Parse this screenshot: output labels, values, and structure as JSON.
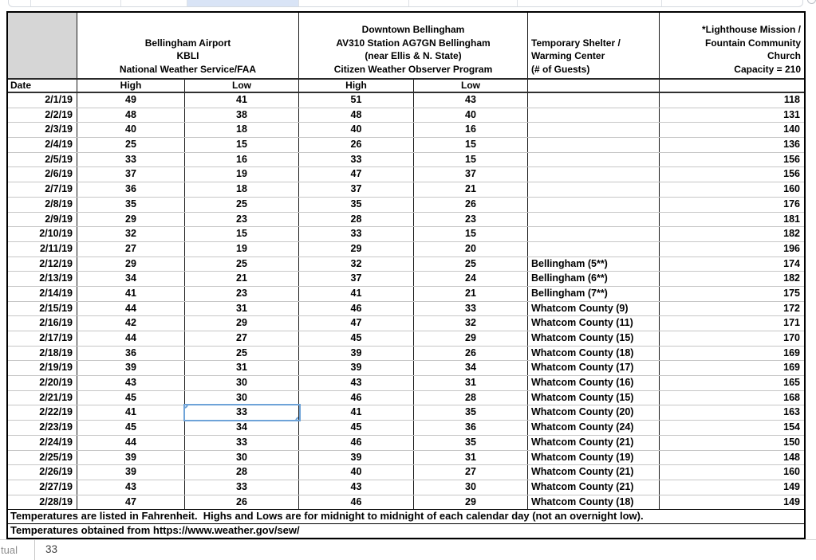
{
  "table": {
    "corner_label": "",
    "date_header": "Date",
    "groups": [
      {
        "id": "kbli",
        "title_lines": [
          "Bellingham Airport",
          "KBLI",
          "National Weather Service/FAA"
        ],
        "subheaders": [
          "High",
          "Low"
        ]
      },
      {
        "id": "downtown",
        "title_lines": [
          "Downtown Bellingham",
          "AV310 Station AG7GN Bellingham",
          "(near Ellis & N. State)",
          "Citizen Weather Observer Program"
        ],
        "subheaders": [
          "High",
          "Low"
        ]
      },
      {
        "id": "shelter",
        "title_lines": [
          "Temporary Shelter /",
          "Warming Center",
          "(# of Guests)"
        ],
        "subheaders": [
          ""
        ]
      },
      {
        "id": "mission",
        "title_lines": [
          "*Lighthouse Mission /",
          "Fountain Community",
          "Church",
          "Capacity = 210"
        ],
        "subheaders": [
          ""
        ]
      }
    ],
    "rows": [
      {
        "date": "2/1/19",
        "kbli_high": "49",
        "kbli_low": "41",
        "dt_high": "51",
        "dt_low": "43",
        "shelter": "",
        "mission": "118"
      },
      {
        "date": "2/2/19",
        "kbli_high": "48",
        "kbli_low": "38",
        "dt_high": "48",
        "dt_low": "40",
        "shelter": "",
        "mission": "131"
      },
      {
        "date": "2/3/19",
        "kbli_high": "40",
        "kbli_low": "18",
        "dt_high": "40",
        "dt_low": "16",
        "shelter": "",
        "mission": "140"
      },
      {
        "date": "2/4/19",
        "kbli_high": "25",
        "kbli_low": "15",
        "dt_high": "26",
        "dt_low": "15",
        "shelter": "",
        "mission": "136"
      },
      {
        "date": "2/5/19",
        "kbli_high": "33",
        "kbli_low": "16",
        "dt_high": "33",
        "dt_low": "15",
        "shelter": "",
        "mission": "156"
      },
      {
        "date": "2/6/19",
        "kbli_high": "37",
        "kbli_low": "19",
        "dt_high": "47",
        "dt_low": "37",
        "shelter": "",
        "mission": "156"
      },
      {
        "date": "2/7/19",
        "kbli_high": "36",
        "kbli_low": "18",
        "dt_high": "37",
        "dt_low": "21",
        "shelter": "",
        "mission": "160"
      },
      {
        "date": "2/8/19",
        "kbli_high": "35",
        "kbli_low": "25",
        "dt_high": "35",
        "dt_low": "26",
        "shelter": "",
        "mission": "176"
      },
      {
        "date": "2/9/19",
        "kbli_high": "29",
        "kbli_low": "23",
        "dt_high": "28",
        "dt_low": "23",
        "shelter": "",
        "mission": "181"
      },
      {
        "date": "2/10/19",
        "kbli_high": "32",
        "kbli_low": "15",
        "dt_high": "33",
        "dt_low": "15",
        "shelter": "",
        "mission": "182"
      },
      {
        "date": "2/11/19",
        "kbli_high": "27",
        "kbli_low": "19",
        "dt_high": "29",
        "dt_low": "20",
        "shelter": "",
        "mission": "196"
      },
      {
        "date": "2/12/19",
        "kbli_high": "29",
        "kbli_low": "25",
        "dt_high": "32",
        "dt_low": "25",
        "shelter": "Bellingham (5**)",
        "mission": "174"
      },
      {
        "date": "2/13/19",
        "kbli_high": "34",
        "kbli_low": "21",
        "dt_high": "37",
        "dt_low": "24",
        "shelter": "Bellingham (6**)",
        "mission": "182"
      },
      {
        "date": "2/14/19",
        "kbli_high": "41",
        "kbli_low": "23",
        "dt_high": "41",
        "dt_low": "21",
        "shelter": "Bellingham (7**)",
        "mission": "175"
      },
      {
        "date": "2/15/19",
        "kbli_high": "44",
        "kbli_low": "31",
        "dt_high": "46",
        "dt_low": "33",
        "shelter": "Whatcom County (9)",
        "mission": "172"
      },
      {
        "date": "2/16/19",
        "kbli_high": "42",
        "kbli_low": "29",
        "dt_high": "47",
        "dt_low": "32",
        "shelter": "Whatcom County (11)",
        "mission": "171"
      },
      {
        "date": "2/17/19",
        "kbli_high": "44",
        "kbli_low": "27",
        "dt_high": "45",
        "dt_low": "29",
        "shelter": "Whatcom County (15)",
        "mission": "170"
      },
      {
        "date": "2/18/19",
        "kbli_high": "36",
        "kbli_low": "25",
        "dt_high": "39",
        "dt_low": "26",
        "shelter": "Whatcom County (18)",
        "mission": "169"
      },
      {
        "date": "2/19/19",
        "kbli_high": "39",
        "kbli_low": "31",
        "dt_high": "39",
        "dt_low": "34",
        "shelter": "Whatcom County (17)",
        "mission": "169"
      },
      {
        "date": "2/20/19",
        "kbli_high": "43",
        "kbli_low": "30",
        "dt_high": "43",
        "dt_low": "31",
        "shelter": "Whatcom County (16)",
        "mission": "165"
      },
      {
        "date": "2/21/19",
        "kbli_high": "45",
        "kbli_low": "30",
        "dt_high": "46",
        "dt_low": "28",
        "shelter": "Whatcom County (15)",
        "mission": "168"
      },
      {
        "date": "2/22/19",
        "kbli_high": "41",
        "kbli_low": "33",
        "dt_high": "41",
        "dt_low": "35",
        "shelter": "Whatcom County (20)",
        "mission": "163"
      },
      {
        "date": "2/23/19",
        "kbli_high": "45",
        "kbli_low": "34",
        "dt_high": "45",
        "dt_low": "36",
        "shelter": "Whatcom County (24)",
        "mission": "154"
      },
      {
        "date": "2/24/19",
        "kbli_high": "44",
        "kbli_low": "33",
        "dt_high": "46",
        "dt_low": "35",
        "shelter": "Whatcom County (21)",
        "mission": "150"
      },
      {
        "date": "2/25/19",
        "kbli_high": "39",
        "kbli_low": "30",
        "dt_high": "39",
        "dt_low": "31",
        "shelter": "Whatcom County (19)",
        "mission": "148"
      },
      {
        "date": "2/26/19",
        "kbli_high": "39",
        "kbli_low": "28",
        "dt_high": "40",
        "dt_low": "27",
        "shelter": "Whatcom County (21)",
        "mission": "160"
      },
      {
        "date": "2/27/19",
        "kbli_high": "43",
        "kbli_low": "33",
        "dt_high": "43",
        "dt_low": "30",
        "shelter": "Whatcom County (21)",
        "mission": "149"
      },
      {
        "date": "2/28/19",
        "kbli_high": "47",
        "kbli_low": "26",
        "dt_high": "46",
        "dt_low": "29",
        "shelter": "Whatcom County (18)",
        "mission": "149"
      }
    ],
    "notes": [
      "Temperatures are listed in Fahrenheit.  Highs and Lows are for midnight to midnight of each calendar day (not an overnight low).",
      "Temperatures obtained from https://www.weather.gov/sew/"
    ]
  },
  "selection": {
    "date": "2/22/19",
    "field": "kbli_low",
    "value": "33"
  },
  "status_bar": {
    "tab_label_partial": "tual",
    "cell_value": "33"
  },
  "colors": {
    "selection_border": "#6ea3d8",
    "column_highlight": "#d9e4f6",
    "corner_cell": "#d6d6d6",
    "grid_dark": "#1a1a1a",
    "grid_light": "#c6c6c6"
  }
}
